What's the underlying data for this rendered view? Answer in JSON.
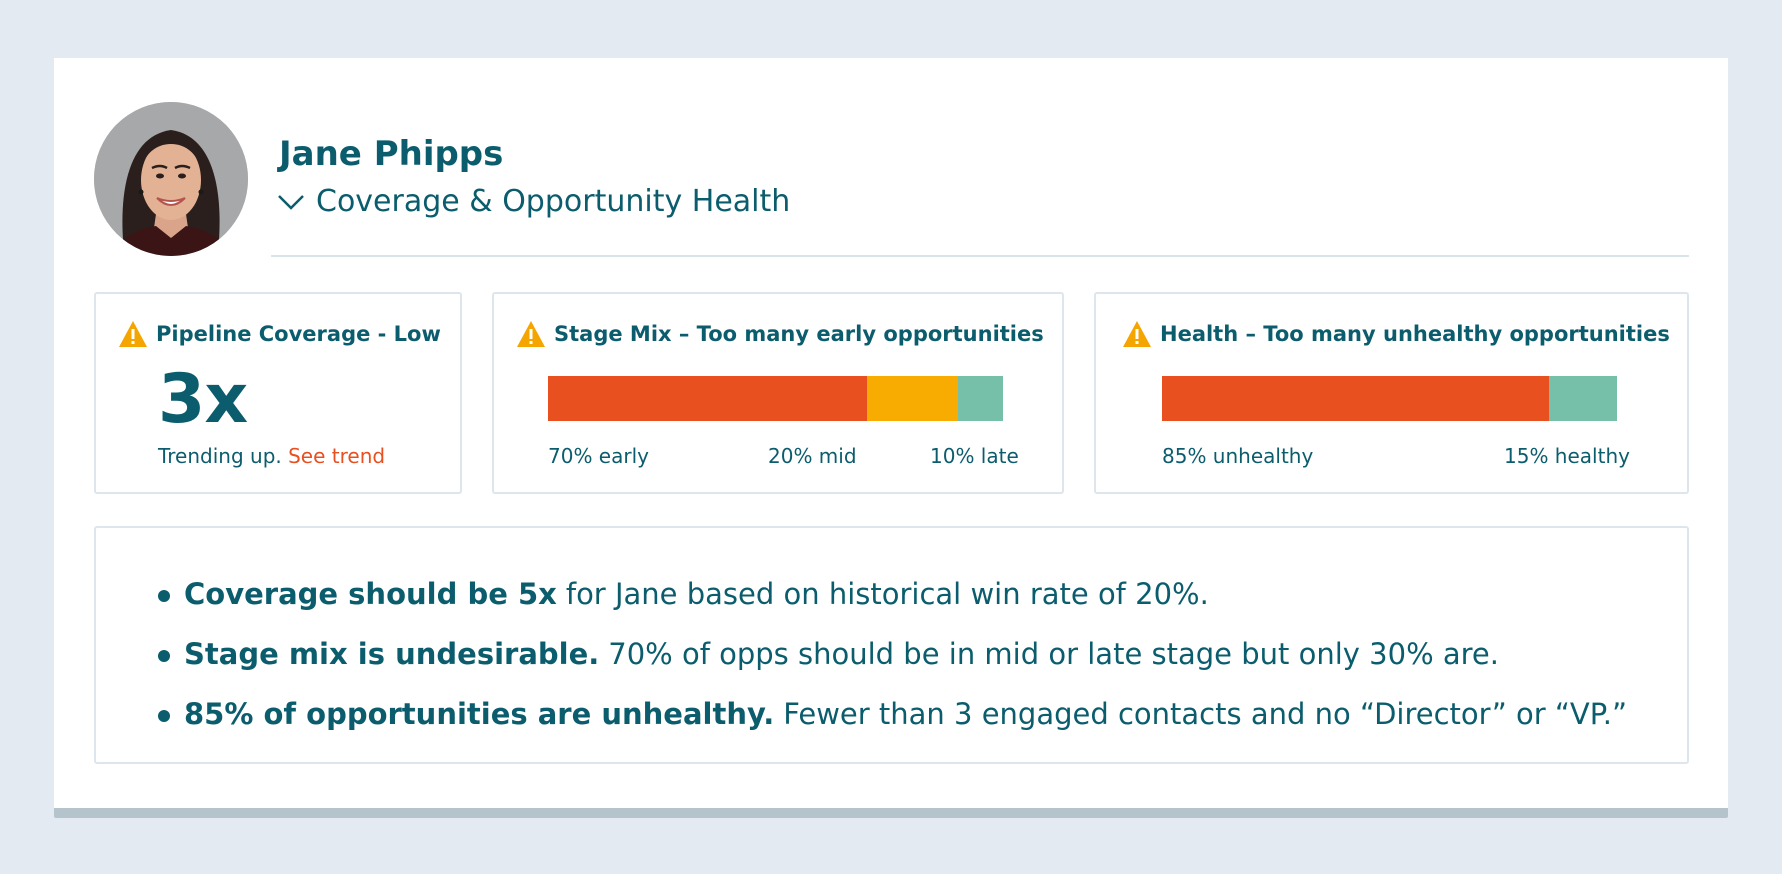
{
  "profile": {
    "name": "Jane Phipps",
    "section_title": "Coverage & Opportunity Health"
  },
  "colors": {
    "brand": "#0b5d6d",
    "early": "#e8501f",
    "mid": "#f8ab00",
    "late": "#76bfa9",
    "warning": "#f5a500",
    "link": "#e8501f"
  },
  "panels": {
    "coverage": {
      "title": "Pipeline Coverage - Low",
      "value": "3x",
      "trend_text": "Trending up.",
      "trend_link": "See trend"
    },
    "stage_mix": {
      "title": "Stage Mix – Too many early opportunities",
      "segments": [
        {
          "key": "early",
          "percent": 70,
          "label": "70% early",
          "color": "#e8501f"
        },
        {
          "key": "mid",
          "percent": 20,
          "label": "20% mid",
          "color": "#f8ab00"
        },
        {
          "key": "late",
          "percent": 10,
          "label": "10% late",
          "color": "#76bfa9"
        }
      ]
    },
    "health": {
      "title": "Health – Too many unhealthy opportunities",
      "segments": [
        {
          "key": "unhealthy",
          "percent": 85,
          "label": "85% unhealthy",
          "color": "#e8501f"
        },
        {
          "key": "healthy",
          "percent": 15,
          "label": "15% healthy",
          "color": "#76bfa9"
        }
      ]
    }
  },
  "notes": [
    {
      "bold": "Coverage should be 5x",
      "text": "for Jane based on historical win rate of 20%."
    },
    {
      "bold": "Stage mix is undesirable.",
      "text": "70% of opps should be in mid or late stage but only 30% are."
    },
    {
      "bold": "85% of opportunities are unhealthy.",
      "text": "Fewer than 3 engaged contacts and no “Director” or “VP.”"
    }
  ]
}
